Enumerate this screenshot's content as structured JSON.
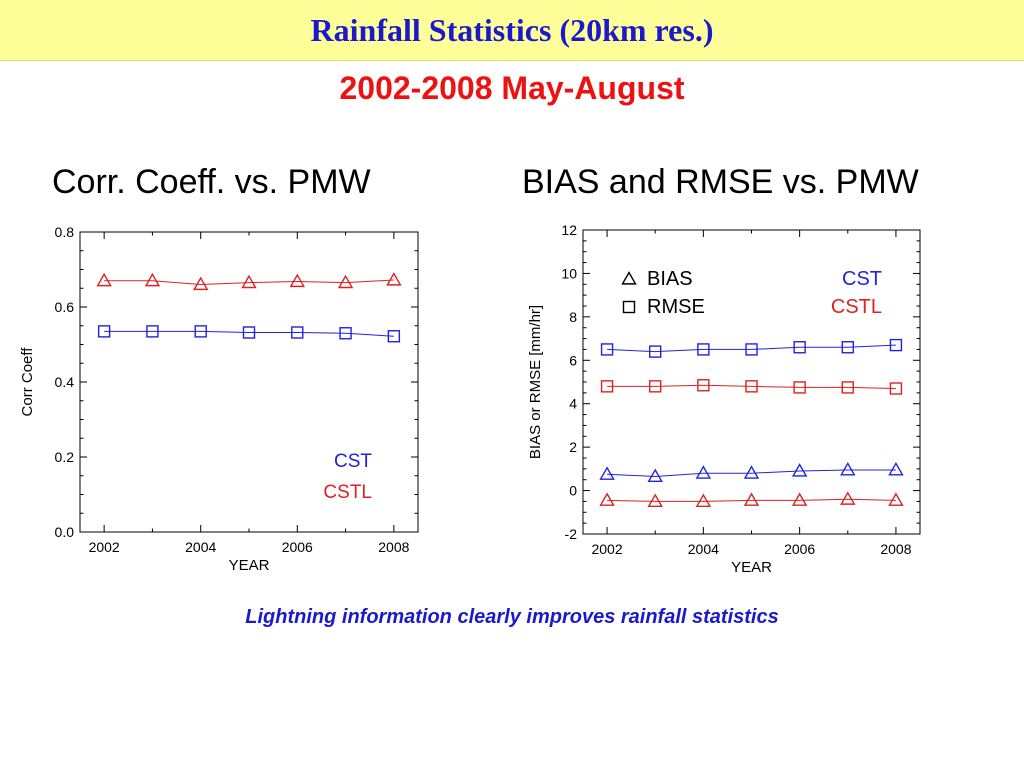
{
  "header": {
    "title": "Rainfall Statistics (20km res.)",
    "subtitle": "2002-2008 May-August"
  },
  "panels": {
    "left_heading": "Corr. Coeff. vs. PMW",
    "right_heading": "BIAS and RMSE vs. PMW"
  },
  "footer": {
    "text": "Lightning information clearly improves rainfall statistics"
  },
  "colors": {
    "cst": "#2222dd",
    "cstl": "#dd2222",
    "header_bg": "#ffff99",
    "title": "#1a1acc",
    "subtitle": "#ee1111"
  },
  "chart_data": [
    {
      "type": "line",
      "title": "",
      "xlabel": "YEAR",
      "ylabel": "Corr Coeff",
      "xlim": [
        2001.5,
        2008.5
      ],
      "ylim": [
        0.0,
        0.8
      ],
      "x_ticks": [
        2002,
        2004,
        2006,
        2008
      ],
      "y_ticks": [
        0.0,
        0.2,
        0.4,
        0.6,
        0.8
      ],
      "y_tick_labels": [
        "0.0",
        "0.2",
        "0.4",
        "0.6",
        "0.8"
      ],
      "x": [
        2002,
        2003,
        2004,
        2005,
        2006,
        2007,
        2008
      ],
      "series": [
        {
          "name": "CSTL",
          "color": "#dd2222",
          "marker": "triangle",
          "values": [
            0.67,
            0.67,
            0.66,
            0.665,
            0.668,
            0.665,
            0.672
          ]
        },
        {
          "name": "CST",
          "color": "#2222dd",
          "marker": "square",
          "values": [
            0.535,
            0.535,
            0.535,
            0.532,
            0.532,
            0.53,
            0.522
          ]
        }
      ],
      "legend": {
        "position": "bottom-right",
        "entries": [
          "CST",
          "CSTL"
        ]
      },
      "grid": false
    },
    {
      "type": "line",
      "title": "",
      "xlabel": "YEAR",
      "ylabel": "BIAS or RMSE [mm/hr]",
      "xlim": [
        2001.5,
        2008.5
      ],
      "ylim": [
        -2,
        12
      ],
      "x_ticks": [
        2002,
        2004,
        2006,
        2008
      ],
      "y_ticks": [
        -2,
        0,
        2,
        4,
        6,
        8,
        10,
        12
      ],
      "y_tick_labels": [
        "-2",
        "0",
        "2",
        "4",
        "6",
        "8",
        "10",
        "12"
      ],
      "x": [
        2002,
        2003,
        2004,
        2005,
        2006,
        2007,
        2008
      ],
      "series": [
        {
          "name": "CST RMSE",
          "color": "#2222dd",
          "marker": "square",
          "values": [
            6.5,
            6.4,
            6.5,
            6.5,
            6.6,
            6.6,
            6.7
          ]
        },
        {
          "name": "CSTL RMSE",
          "color": "#dd2222",
          "marker": "square",
          "values": [
            4.8,
            4.8,
            4.85,
            4.8,
            4.75,
            4.75,
            4.7
          ]
        },
        {
          "name": "CST BIAS",
          "color": "#2222dd",
          "marker": "triangle",
          "values": [
            0.75,
            0.65,
            0.8,
            0.8,
            0.9,
            0.95,
            0.95
          ]
        },
        {
          "name": "CSTL BIAS",
          "color": "#dd2222",
          "marker": "triangle",
          "values": [
            -0.45,
            -0.5,
            -0.5,
            -0.45,
            -0.45,
            -0.4,
            -0.45
          ]
        }
      ],
      "legend": {
        "position": "top",
        "marker_entries": [
          {
            "label": "BIAS",
            "marker": "triangle"
          },
          {
            "label": "RMSE",
            "marker": "square"
          }
        ],
        "color_entries": [
          {
            "label": "CST",
            "color": "#2222dd"
          },
          {
            "label": "CSTL",
            "color": "#dd2222"
          }
        ]
      },
      "grid": false
    }
  ]
}
